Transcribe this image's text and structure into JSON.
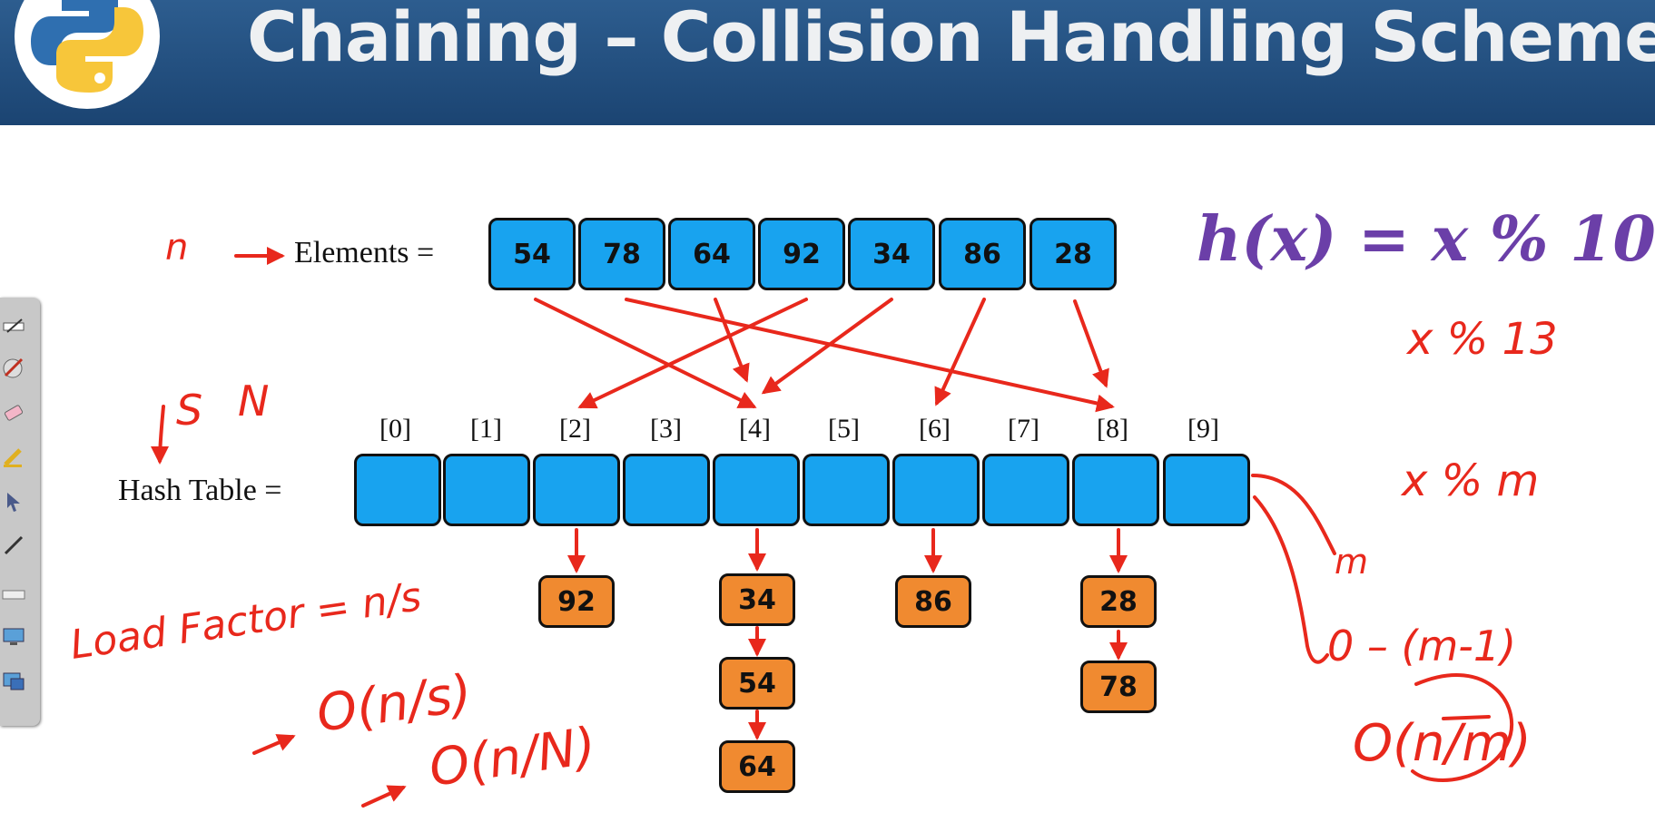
{
  "header": {
    "title": "Chaining – Collision Handling Scheme"
  },
  "labels": {
    "elements": "Elements =",
    "hash_table": "Hash Table ="
  },
  "formula": "h(x) = x % 10",
  "elements": [
    "54",
    "78",
    "64",
    "92",
    "34",
    "86",
    "28"
  ],
  "indices": [
    "[0]",
    "[1]",
    "[2]",
    "[3]",
    "[4]",
    "[5]",
    "[6]",
    "[7]",
    "[8]",
    "[9]"
  ],
  "chains": [
    {
      "slot": 2,
      "nodes": [
        "92"
      ]
    },
    {
      "slot": 4,
      "nodes": [
        "34",
        "54",
        "64"
      ]
    },
    {
      "slot": 6,
      "nodes": [
        "86"
      ]
    },
    {
      "slot": 8,
      "nodes": [
        "28",
        "78"
      ]
    }
  ],
  "handwritten_notes": {
    "n_label": "n",
    "s_label": "S",
    "capital_n_label": "N",
    "x_mod_13": "x % 13",
    "x_mod_m": "x % m",
    "m_label": "m",
    "range": "0 – (m-1)",
    "complexity_nm": "O(n/m)",
    "load_factor": "Load Factor = n/s",
    "o_ns": "O(n/s)",
    "o_nn": "O(n/N)"
  },
  "colors": {
    "header": "#1f4c7c",
    "element_box": "#18a3ef",
    "chain_node": "#f08a30",
    "annotation": "#e8281c",
    "formula": "#6b3fa8"
  },
  "toolbar_icons": [
    "pen-icon",
    "brush-icon",
    "eraser-icon",
    "highlighter-icon",
    "pointer-icon",
    "line-icon",
    "keyboard-icon",
    "screen-icon",
    "window-icon"
  ]
}
